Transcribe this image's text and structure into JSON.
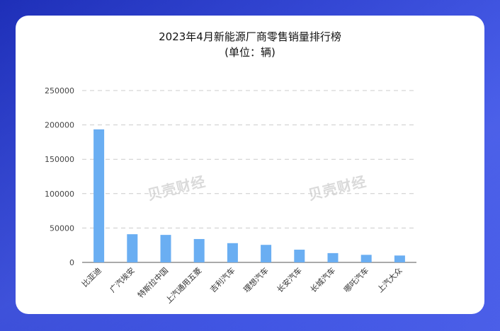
{
  "chart_data": {
    "type": "bar",
    "title": "2023年4月新能源厂商零售销量排行榜",
    "subtitle": "(单位：辆)",
    "categories": [
      "比亚迪",
      "广汽埃安",
      "特斯拉中国",
      "上汽通用五菱",
      "吉利汽车",
      "理想汽车",
      "长安汽车",
      "长城汽车",
      "哪吒汽车",
      "上汽大众"
    ],
    "values": [
      193500,
      41000,
      40000,
      34000,
      28000,
      25500,
      18500,
      13500,
      11000,
      10000
    ],
    "ylim": [
      0,
      250000
    ],
    "yticks": [
      "250000",
      "200000",
      "150000",
      "100000",
      "50000",
      "0"
    ],
    "ytick_values": [
      250000,
      200000,
      150000,
      100000,
      50000,
      0
    ],
    "grid": true,
    "bar_color": "#6aaef2"
  },
  "watermark": "贝壳财经"
}
